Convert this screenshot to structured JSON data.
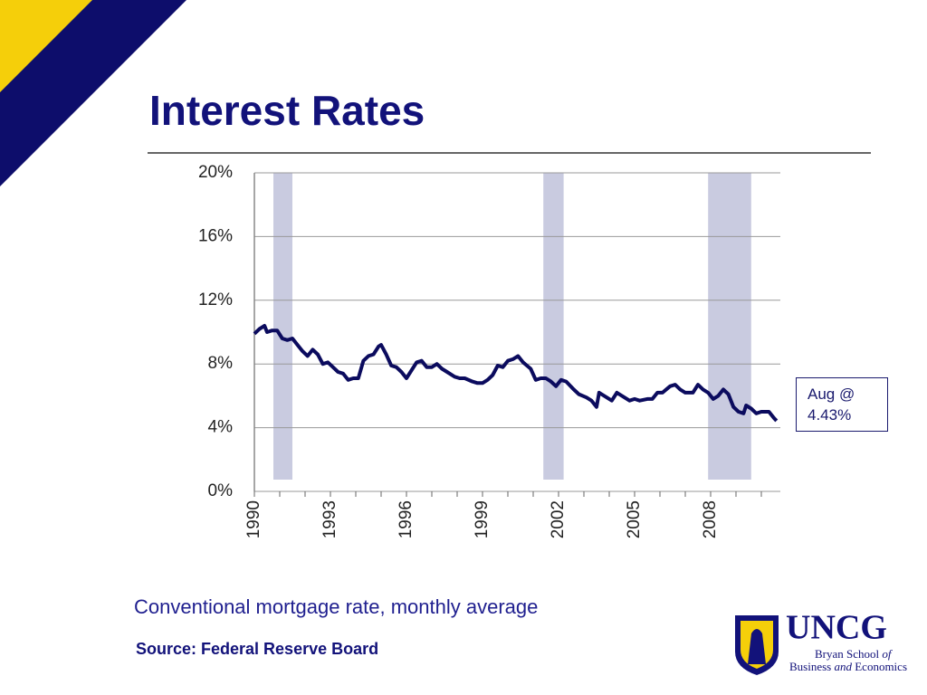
{
  "header": {
    "title": "Interest Rates"
  },
  "chart_data": {
    "type": "line",
    "x": [
      1990.0,
      1990.2,
      1990.4,
      1990.5,
      1990.7,
      1990.9,
      1991.1,
      1991.3,
      1991.5,
      1991.7,
      1991.9,
      1992.1,
      1992.3,
      1992.5,
      1992.7,
      1992.9,
      1993.1,
      1993.3,
      1993.5,
      1993.7,
      1993.9,
      1994.1,
      1994.3,
      1994.5,
      1994.7,
      1994.9,
      1995.0,
      1995.2,
      1995.4,
      1995.6,
      1995.8,
      1996.0,
      1996.2,
      1996.4,
      1996.6,
      1996.8,
      1997.0,
      1997.2,
      1997.4,
      1997.6,
      1997.9,
      1998.1,
      1998.3,
      1998.6,
      1998.8,
      1999.0,
      1999.2,
      1999.4,
      1999.6,
      1999.8,
      2000.0,
      2000.2,
      2000.4,
      2000.6,
      2000.9,
      2001.1,
      2001.3,
      2001.5,
      2001.7,
      2001.9,
      2002.1,
      2002.3,
      2002.6,
      2002.8,
      2003.1,
      2003.3,
      2003.5,
      2003.6,
      2003.9,
      2004.1,
      2004.3,
      2004.5,
      2004.8,
      2005.0,
      2005.2,
      2005.5,
      2005.7,
      2005.9,
      2006.1,
      2006.4,
      2006.6,
      2006.8,
      2007.0,
      2007.3,
      2007.5,
      2007.7,
      2007.9,
      2008.1,
      2008.3,
      2008.5,
      2008.7,
      2008.9,
      2009.1,
      2009.3,
      2009.4,
      2009.6,
      2009.8,
      2010.0,
      2010.3,
      2010.5,
      2010.6
    ],
    "values": [
      9.9,
      10.2,
      10.4,
      10.0,
      10.1,
      10.1,
      9.6,
      9.5,
      9.6,
      9.2,
      8.8,
      8.5,
      8.9,
      8.6,
      8.0,
      8.1,
      7.8,
      7.5,
      7.4,
      7.0,
      7.1,
      7.1,
      8.2,
      8.5,
      8.6,
      9.1,
      9.2,
      8.6,
      7.9,
      7.8,
      7.5,
      7.1,
      7.6,
      8.1,
      8.2,
      7.8,
      7.8,
      8.0,
      7.7,
      7.5,
      7.2,
      7.1,
      7.1,
      6.9,
      6.8,
      6.8,
      7.0,
      7.3,
      7.9,
      7.8,
      8.2,
      8.3,
      8.5,
      8.1,
      7.7,
      7.0,
      7.1,
      7.1,
      6.9,
      6.6,
      7.0,
      6.9,
      6.4,
      6.1,
      5.9,
      5.7,
      5.3,
      6.2,
      5.9,
      5.7,
      6.2,
      6.0,
      5.7,
      5.8,
      5.7,
      5.8,
      5.8,
      6.2,
      6.2,
      6.6,
      6.7,
      6.4,
      6.2,
      6.2,
      6.7,
      6.4,
      6.2,
      5.8,
      6.0,
      6.4,
      6.1,
      5.3,
      5.0,
      4.9,
      5.4,
      5.2,
      4.9,
      5.0,
      5.0,
      4.6,
      4.43
    ],
    "color": "#0b0b5e",
    "xlim": [
      1990,
      2010.75
    ],
    "xticks": [
      1990,
      1993,
      1996,
      1999,
      2002,
      2005,
      2008
    ],
    "xminorticks": [
      1991,
      1992,
      1994,
      1995,
      1997,
      1998,
      2000,
      2001,
      2003,
      2004,
      2006,
      2007,
      2009,
      2010
    ],
    "ylim": [
      0,
      20
    ],
    "yticks": [
      {
        "value": 0,
        "label": "0%"
      },
      {
        "value": 4,
        "label": "4%"
      },
      {
        "value": 8,
        "label": "8%"
      },
      {
        "value": 12,
        "label": "12%"
      },
      {
        "value": 16,
        "label": "16%"
      },
      {
        "value": 20,
        "label": "20%"
      }
    ],
    "grid": true,
    "shaded_periods": [
      [
        1990.75,
        1991.5
      ],
      [
        2001.4,
        2002.2
      ],
      [
        2007.9,
        2009.6
      ]
    ],
    "shade_color": "#c9cbe0",
    "annotation": "Aug @ 4.43%",
    "caption": "Conventional mortgage rate, monthly average",
    "source": "Source:  Federal Reserve Board"
  },
  "logo": {
    "name": "UNCG",
    "line1": "Bryan School",
    "line1b": "of",
    "line2a": "Business",
    "line2b": "and",
    "line2c": "Economics"
  }
}
